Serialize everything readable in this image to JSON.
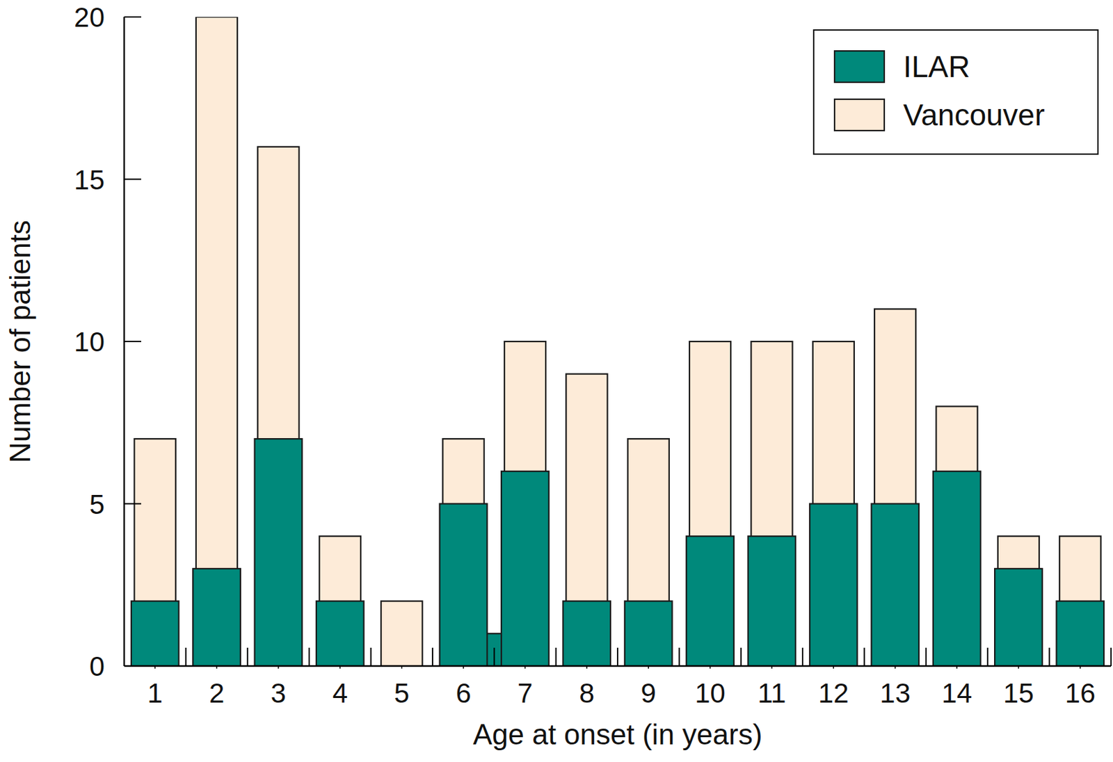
{
  "chart_data": {
    "type": "bar",
    "x_label": "Age at onset (in years)",
    "y_label": "Number of patients",
    "xlim": [
      0.5,
      16.5
    ],
    "xticks": [
      1,
      2,
      3,
      4,
      5,
      6,
      7,
      8,
      9,
      10,
      11,
      12,
      13,
      14,
      15,
      16
    ],
    "ylim": [
      0,
      20
    ],
    "yticks": [
      0,
      5,
      10,
      15,
      20
    ],
    "legend": "upper right",
    "series": [
      {
        "name": "ILAR",
        "color": "#00897b",
        "x": [
          1,
          2,
          3,
          4,
          5,
          6,
          6.5,
          7,
          8,
          9,
          10,
          11,
          12,
          13,
          14,
          15,
          16
        ],
        "values": [
          2,
          3,
          7,
          2,
          0,
          5,
          1,
          6,
          2,
          2,
          4,
          4,
          5,
          5,
          6,
          3,
          2
        ]
      },
      {
        "name": "Vancouver",
        "color": "#fdebd8",
        "x": [
          1,
          2,
          3,
          4,
          5,
          6,
          7,
          8,
          9,
          10,
          11,
          12,
          13,
          14,
          15,
          16
        ],
        "values": [
          7,
          20,
          16,
          4,
          2,
          7,
          10,
          9,
          7,
          10,
          10,
          10,
          11,
          8,
          4,
          4
        ]
      }
    ]
  }
}
